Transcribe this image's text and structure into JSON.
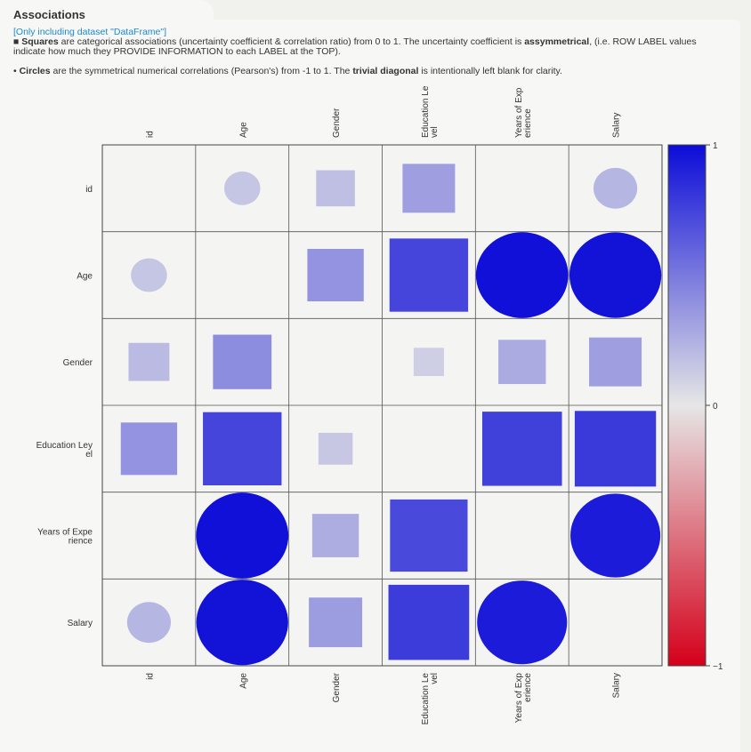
{
  "header": {
    "title": "Associations"
  },
  "notes": {
    "dataset": "[Only including dataset \"DataFrame\"]",
    "squares_prefix": "■ ",
    "squares_bold": "Squares",
    "squares_text_1": " are categorical associations (uncertainty coefficient & correlation ratio) from 0 to 1. The uncertainty coefficient is ",
    "squares_bold_2": "assymmetrical",
    "squares_text_2": ", (i.e. ROW LABEL values indicate how much they PROVIDE INFORMATION to each LABEL at the TOP).",
    "circles_prefix": "• ",
    "circles_bold": "Circles",
    "circles_text_1": " are the symmetrical numerical correlations (Pearson's) from -1 to 1. The ",
    "circles_bold_2": "trivial diagonal",
    "circles_text_2": " is intentionally left blank for clarity."
  },
  "chart_data": {
    "type": "heatmap",
    "columns": [
      [
        "id"
      ],
      [
        "Age"
      ],
      [
        "Gender"
      ],
      [
        "Education Le",
        "vel"
      ],
      [
        "Years of Exp",
        "erience"
      ],
      [
        "Salary"
      ]
    ],
    "rows": [
      [
        "id"
      ],
      [
        "Age"
      ],
      [
        "Gender"
      ],
      [
        "Education Ley",
        "el"
      ],
      [
        "Years of Expe",
        "rience"
      ],
      [
        "Salary"
      ]
    ],
    "colorbar": {
      "ticks": [
        "1",
        "0",
        "−1"
      ],
      "range": [
        -1,
        1
      ]
    },
    "colors": {
      "positive": "#0c0cd8",
      "neutral": "#e6e6e6",
      "negative": "#d4001a"
    },
    "cells": [
      [
        null,
        {
          "s": "c",
          "v": 0.15
        },
        {
          "s": "q",
          "v": 0.18
        },
        {
          "s": "q",
          "v": 0.33
        },
        {
          "s": "c",
          "v": 0.0
        },
        {
          "s": "c",
          "v": 0.22
        }
      ],
      [
        {
          "s": "c",
          "v": 0.15
        },
        null,
        {
          "s": "q",
          "v": 0.38
        },
        {
          "s": "q",
          "v": 0.74
        },
        {
          "s": "c",
          "v": 0.98
        },
        {
          "s": "c",
          "v": 0.97
        }
      ],
      [
        {
          "s": "q",
          "v": 0.2
        },
        {
          "s": "q",
          "v": 0.41
        },
        null,
        {
          "s": "q",
          "v": 0.11
        },
        {
          "s": "q",
          "v": 0.27
        },
        {
          "s": "q",
          "v": 0.33
        }
      ],
      [
        {
          "s": "q",
          "v": 0.38
        },
        {
          "s": "q",
          "v": 0.74
        },
        {
          "s": "q",
          "v": 0.14
        },
        null,
        {
          "s": "q",
          "v": 0.76
        },
        {
          "s": "q",
          "v": 0.79
        }
      ],
      [
        {
          "s": "c",
          "v": 0.0
        },
        {
          "s": "c",
          "v": 0.98
        },
        {
          "s": "q",
          "v": 0.26
        },
        {
          "s": "q",
          "v": 0.72
        },
        null,
        {
          "s": "c",
          "v": 0.93
        }
      ],
      [
        {
          "s": "c",
          "v": 0.22
        },
        {
          "s": "c",
          "v": 0.97
        },
        {
          "s": "q",
          "v": 0.34
        },
        {
          "s": "q",
          "v": 0.78
        },
        {
          "s": "c",
          "v": 0.93
        },
        null
      ]
    ]
  }
}
